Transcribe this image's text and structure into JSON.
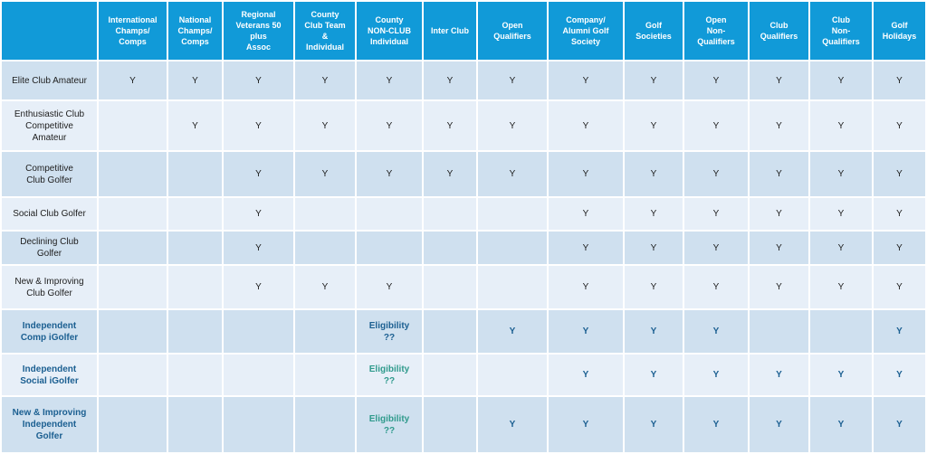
{
  "colors": {
    "header_bg": "#119ad8",
    "row_dark": "#cfe0ef",
    "row_light": "#e7eff8",
    "independent_text": "#1b5f91",
    "eligibility_teal": "#2f9a8c"
  },
  "table": {
    "corner": "",
    "columns": [
      "International\nChamps/\nComps",
      "National\nChamps/\nComps",
      "Regional\nVeterans 50\nplus\nAssoc",
      "County\nClub Team\n&\nIndividual",
      "County\nNON-CLUB\nIndividual",
      "Inter Club",
      "Open\nQualifiers",
      "Company/\nAlumni Golf\nSociety",
      "Golf\nSocieties",
      "Open\nNon-\nQualifiers",
      "Club\nQualifiers",
      "Club\nNon-\nQualifiers",
      "Golf\nHolidays"
    ],
    "rows": [
      {
        "label": "Elite Club Amateur",
        "cells": [
          "Y",
          "Y",
          "Y",
          "Y",
          "Y",
          "Y",
          "Y",
          "Y",
          "Y",
          "Y",
          "Y",
          "Y",
          "Y"
        ]
      },
      {
        "label": "Enthusiastic Club\nCompetitive\nAmateur",
        "cells": [
          "",
          "Y",
          "Y",
          "Y",
          "Y",
          "Y",
          "Y",
          "Y",
          "Y",
          "Y",
          "Y",
          "Y",
          "Y"
        ]
      },
      {
        "label": "Competitive\nClub Golfer",
        "cells": [
          "",
          "",
          "Y",
          "Y",
          "Y",
          "Y",
          "Y",
          "Y",
          "Y",
          "Y",
          "Y",
          "Y",
          "Y"
        ]
      },
      {
        "label": "Social Club Golfer",
        "cells": [
          "",
          "",
          "Y",
          "",
          "",
          "",
          "",
          "Y",
          "Y",
          "Y",
          "Y",
          "Y",
          "Y"
        ]
      },
      {
        "label": "Declining Club\nGolfer",
        "cells": [
          "",
          "",
          "Y",
          "",
          "",
          "",
          "",
          "Y",
          "Y",
          "Y",
          "Y",
          "Y",
          "Y"
        ]
      },
      {
        "label": "New & Improving\nClub Golfer",
        "cells": [
          "",
          "",
          "Y",
          "Y",
          "Y",
          "",
          "",
          "Y",
          "Y",
          "Y",
          "Y",
          "Y",
          "Y"
        ]
      },
      {
        "label": "Independent\nComp iGolfer",
        "cells": [
          "",
          "",
          "",
          "",
          "Eligibility\n??",
          "",
          "Y",
          "Y",
          "Y",
          "Y",
          "",
          "",
          "Y"
        ]
      },
      {
        "label": "Independent\nSocial iGolfer",
        "cells": [
          "",
          "",
          "",
          "",
          "Eligibility\n??",
          "",
          "",
          "Y",
          "Y",
          "Y",
          "Y",
          "Y",
          "Y"
        ]
      },
      {
        "label": "New & Improving\nIndependent\nGolfer",
        "cells": [
          "",
          "",
          "",
          "",
          "Eligibility\n??",
          "",
          "Y",
          "Y",
          "Y",
          "Y",
          "Y",
          "Y",
          "Y"
        ]
      }
    ]
  }
}
